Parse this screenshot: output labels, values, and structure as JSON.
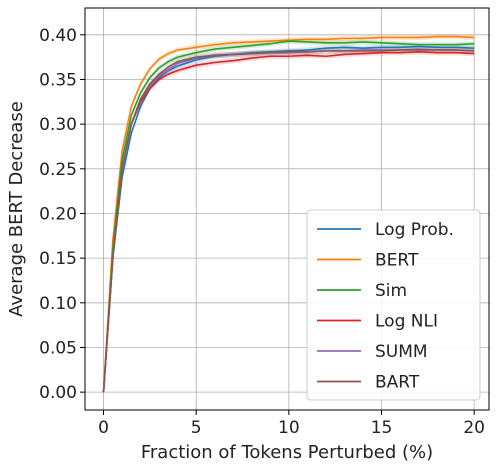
{
  "chart_data": {
    "type": "line",
    "title": "",
    "xlabel": "Fraction of Tokens Perturbed (%)",
    "ylabel": "Average BERT Decrease",
    "xlim": [
      -1,
      20.8
    ],
    "ylim": [
      -0.02,
      0.43
    ],
    "xticks": [
      0,
      5,
      10,
      15,
      20
    ],
    "yticks": [
      0.0,
      0.05,
      0.1,
      0.15,
      0.2,
      0.25,
      0.3,
      0.35,
      0.4
    ],
    "grid": true,
    "legend_position": "lower-right",
    "x": [
      0,
      0.5,
      1,
      1.5,
      2,
      2.5,
      3,
      3.5,
      4,
      5,
      6,
      7,
      8,
      9,
      10,
      11,
      12,
      13,
      14,
      15,
      16,
      17,
      18,
      19,
      20
    ],
    "series": [
      {
        "name": "Log Prob.",
        "color": "#1f77b4",
        "values": [
          0.0,
          0.15,
          0.24,
          0.29,
          0.32,
          0.34,
          0.352,
          0.36,
          0.365,
          0.372,
          0.376,
          0.378,
          0.38,
          0.381,
          0.382,
          0.383,
          0.385,
          0.386,
          0.385,
          0.386,
          0.386,
          0.387,
          0.386,
          0.386,
          0.385
        ]
      },
      {
        "name": "BERT",
        "color": "#ff7f0e",
        "values": [
          0.0,
          0.17,
          0.27,
          0.32,
          0.345,
          0.362,
          0.373,
          0.379,
          0.383,
          0.386,
          0.389,
          0.391,
          0.392,
          0.393,
          0.394,
          0.395,
          0.395,
          0.396,
          0.396,
          0.397,
          0.397,
          0.397,
          0.398,
          0.398,
          0.397
        ]
      },
      {
        "name": "Sim",
        "color": "#2ca02c",
        "values": [
          0.0,
          0.16,
          0.26,
          0.31,
          0.335,
          0.352,
          0.363,
          0.37,
          0.375,
          0.38,
          0.384,
          0.386,
          0.388,
          0.39,
          0.393,
          0.392,
          0.391,
          0.391,
          0.392,
          0.391,
          0.39,
          0.389,
          0.389,
          0.389,
          0.39
        ]
      },
      {
        "name": "Log NLI",
        "color": "#d62728",
        "values": [
          0.0,
          0.15,
          0.25,
          0.3,
          0.325,
          0.34,
          0.35,
          0.356,
          0.36,
          0.366,
          0.369,
          0.371,
          0.374,
          0.376,
          0.376,
          0.377,
          0.376,
          0.378,
          0.379,
          0.38,
          0.38,
          0.381,
          0.38,
          0.38,
          0.379
        ]
      },
      {
        "name": "SUMM",
        "color": "#9467bd",
        "values": [
          0.0,
          0.15,
          0.25,
          0.3,
          0.328,
          0.343,
          0.354,
          0.361,
          0.368,
          0.374,
          0.377,
          0.378,
          0.379,
          0.38,
          0.38,
          0.381,
          0.382,
          0.382,
          0.383,
          0.383,
          0.383,
          0.384,
          0.383,
          0.383,
          0.382
        ]
      },
      {
        "name": "BART",
        "color": "#8c564b",
        "values": [
          0.0,
          0.15,
          0.25,
          0.3,
          0.328,
          0.345,
          0.356,
          0.364,
          0.37,
          0.375,
          0.377,
          0.378,
          0.379,
          0.38,
          0.381,
          0.381,
          0.382,
          0.382,
          0.382,
          0.382,
          0.383,
          0.383,
          0.383,
          0.383,
          0.382
        ]
      }
    ]
  }
}
